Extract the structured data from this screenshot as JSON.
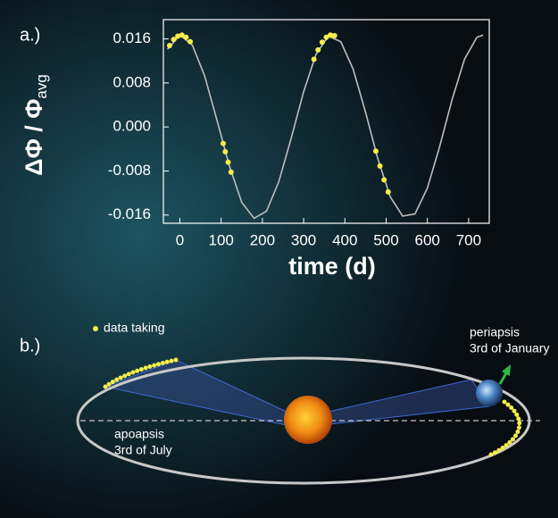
{
  "chart_data": {
    "type": "line",
    "panel_label": "a.)",
    "x_label": "time (d)",
    "y_label": "ΔΦ / Φ",
    "y_label_sub": "avg",
    "xlim": [
      -40,
      750
    ],
    "ylim": [
      -0.0175,
      0.0195
    ],
    "xticks": [
      0,
      100,
      200,
      300,
      400,
      500,
      600,
      700
    ],
    "yticks": [
      0.016,
      0.008,
      {
        "value": 0,
        "label": "0.000"
      },
      -0.008,
      -0.016
    ],
    "series": [
      {
        "color": "#bdbdbd",
        "x": [
          -30,
          0,
          30,
          60,
          90,
          120,
          150,
          180,
          210,
          240,
          270,
          300,
          330,
          360,
          390,
          420,
          450,
          480,
          510,
          540,
          570,
          600,
          630,
          660,
          690,
          720,
          735
        ],
        "values": [
          0.0141,
          0.0167,
          0.0149,
          0.0093,
          0.0012,
          -0.0071,
          -0.0137,
          -0.0166,
          -0.0153,
          -0.0099,
          -0.002,
          0.0064,
          0.0132,
          0.0165,
          0.0155,
          0.0105,
          0.0027,
          -0.0058,
          -0.0127,
          -0.0162,
          -0.0158,
          -0.0111,
          -0.0035,
          0.005,
          0.0123,
          0.0163,
          0.0167
        ]
      },
      {
        "color": "#f5ee4a",
        "type": "scatter",
        "x": [
          -25,
          -15,
          -5,
          5,
          15,
          25,
          105,
          110,
          117,
          124,
          325,
          335,
          345,
          355,
          365,
          375,
          475,
          485,
          495,
          505
        ],
        "values": [
          0.0148,
          0.0159,
          0.0165,
          0.0167,
          0.0163,
          0.0155,
          -0.003,
          -0.0045,
          -0.0064,
          -0.0082,
          0.0123,
          0.014,
          0.0154,
          0.0163,
          0.0167,
          0.0166,
          -0.0044,
          -0.0071,
          -0.0096,
          -0.0118
        ]
      }
    ]
  },
  "orbit": {
    "panel_label": "b.)",
    "legend": "data taking",
    "periapsis": "periapsis",
    "periapsis_date": "3rd of January",
    "apoapsis": "apoapsis",
    "apoapsis_date": "3rd of July"
  }
}
